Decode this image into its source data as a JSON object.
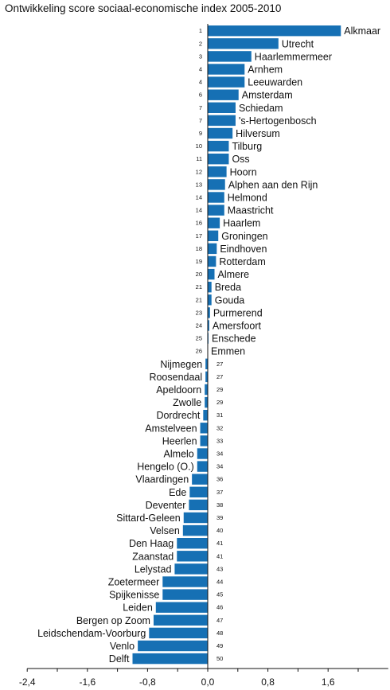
{
  "chart_data": {
    "type": "bar",
    "orientation": "horizontal",
    "title": "Ontwikkeling score sociaal-economische index 2005-2010",
    "xlabel": "",
    "ylabel": "",
    "xlim": [
      -2.4,
      2.4
    ],
    "xticks": [
      "-2,4",
      "-1,6",
      "-0,8",
      "0,0",
      "0,8",
      "1,6"
    ],
    "xtick_values": [
      -2.4,
      -1.6,
      -0.8,
      0.0,
      0.8,
      1.6
    ],
    "bar_color": "#1670b4",
    "grid": false,
    "categories": [
      "Alkmaar",
      "Utrecht",
      "Haarlemmermeer",
      "Arnhem",
      "Leeuwarden",
      "Amsterdam",
      "Schiedam",
      "'s-Hertogenbosch",
      "Hilversum",
      "Tilburg",
      "Oss",
      "Hoorn",
      "Alphen aan den Rijn",
      "Helmond",
      "Maastricht",
      "Haarlem",
      "Groningen",
      "Eindhoven",
      "Rotterdam",
      "Almere",
      "Breda",
      "Gouda",
      "Purmerend",
      "Amersfoort",
      "Enschede",
      "Emmen",
      "Nijmegen",
      "Roosendaal",
      "Apeldoorn",
      "Zwolle",
      "Dordrecht",
      "Amstelveen",
      "Heerlen",
      "Almelo",
      "Hengelo (O.)",
      "Vlaardingen",
      "Ede",
      "Deventer",
      "Sittard-Geleen",
      "Velsen",
      "Den Haag",
      "Zaanstad",
      "Lelystad",
      "Zoetermeer",
      "Spijkenisse",
      "Leiden",
      "Bergen op Zoom",
      "Leidschendam-Voorburg",
      "Venlo",
      "Delft"
    ],
    "ranks": [
      "1",
      "2",
      "3",
      "4",
      "4",
      "6",
      "7",
      "7",
      "9",
      "10",
      "11",
      "12",
      "13",
      "14",
      "14",
      "16",
      "17",
      "18",
      "19",
      "20",
      "21",
      "21",
      "23",
      "24",
      "25",
      "26",
      "27",
      "27",
      "29",
      "29",
      "31",
      "32",
      "33",
      "34",
      "34",
      "36",
      "37",
      "38",
      "39",
      "40",
      "41",
      "41",
      "43",
      "44",
      "45",
      "46",
      "47",
      "48",
      "49",
      "50"
    ],
    "values": [
      1.77,
      0.94,
      0.58,
      0.49,
      0.49,
      0.41,
      0.37,
      0.37,
      0.33,
      0.28,
      0.28,
      0.25,
      0.23,
      0.22,
      0.22,
      0.16,
      0.14,
      0.12,
      0.11,
      0.09,
      0.05,
      0.05,
      0.03,
      0.02,
      0.01,
      0.0,
      -0.03,
      -0.03,
      -0.04,
      -0.04,
      -0.06,
      -0.1,
      -0.1,
      -0.14,
      -0.14,
      -0.21,
      -0.24,
      -0.25,
      -0.32,
      -0.33,
      -0.41,
      -0.41,
      -0.44,
      -0.6,
      -0.6,
      -0.69,
      -0.72,
      -0.78,
      -0.93,
      -1.0
    ]
  }
}
